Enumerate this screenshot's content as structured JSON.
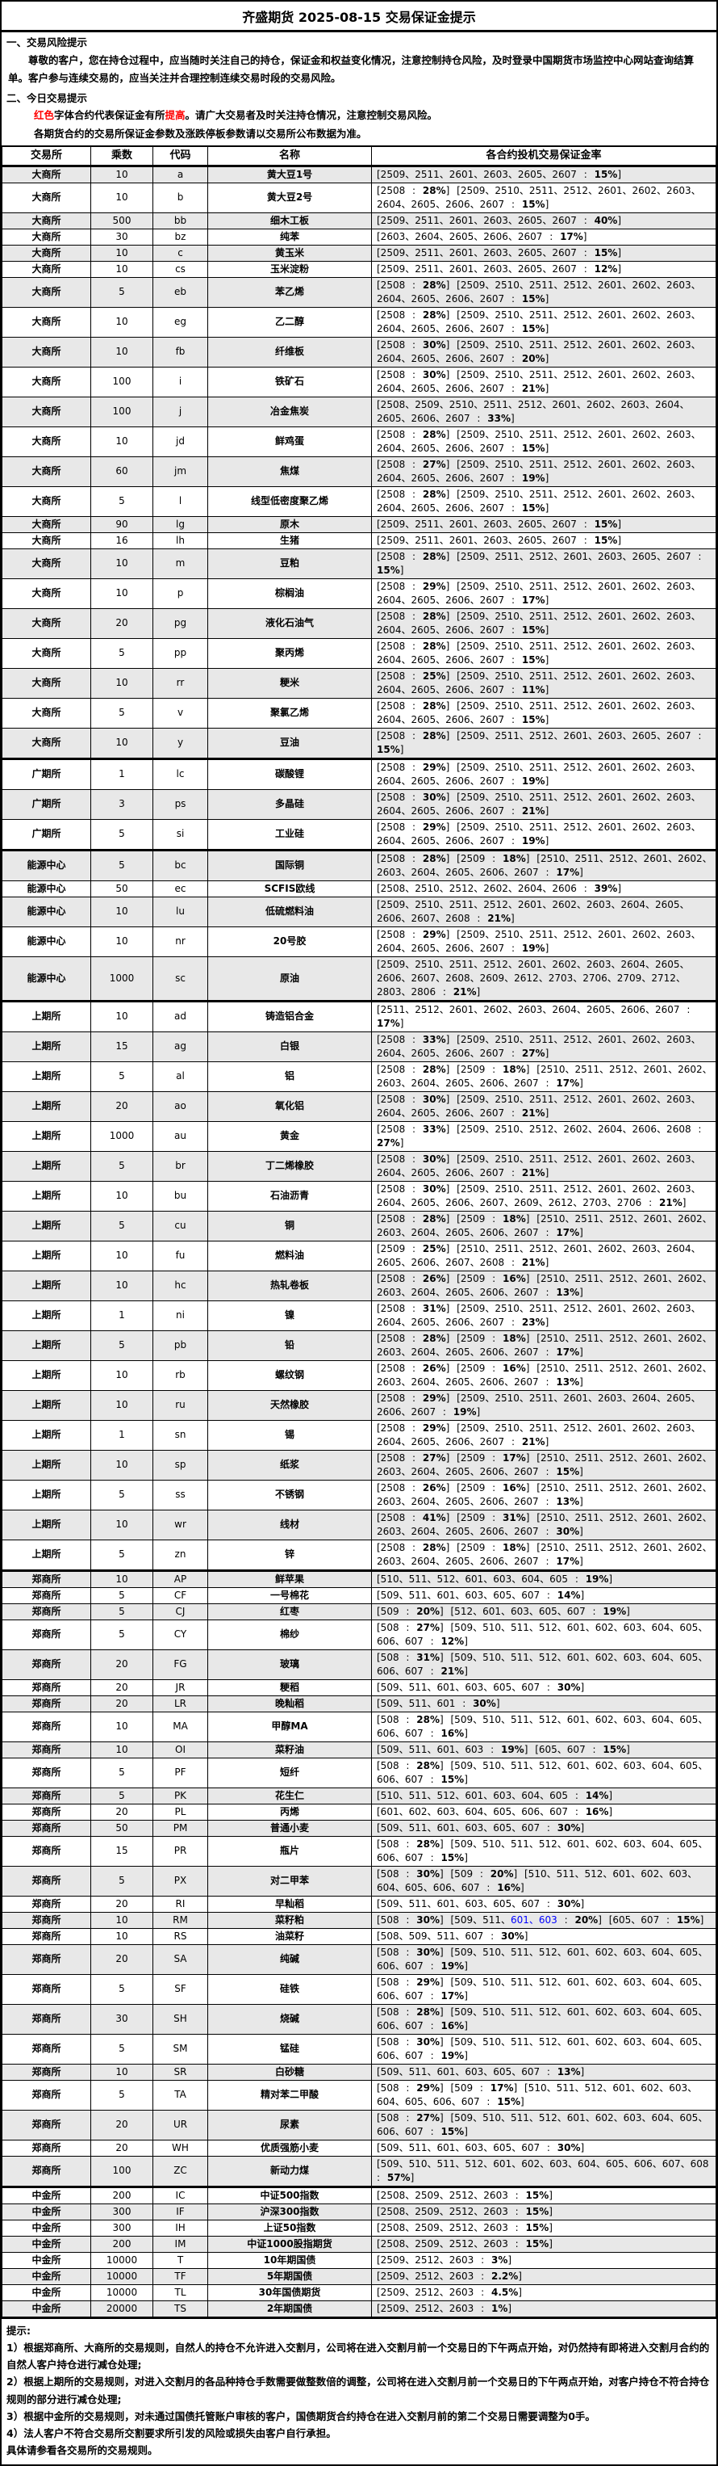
{
  "title": "齐盛期货 2025-08-15 交易保证金提示",
  "risk": {
    "heading": "一、交易风险提示",
    "body": "尊敬的客户，您在持仓过程中，应当随时关注自己的持仓，保证金和权益变化情况，注意控制持仓风险，及时登录中国期货市场监控中心网站查询结算单。客户参与连续交易的，应当关注并合理控制连续交易时段的交易风险。"
  },
  "today": {
    "heading": "二、今日交易提示",
    "line1": [
      {
        "text": "红色",
        "red": true
      },
      {
        "text": "字体合约代表保证金有所",
        "red": false
      },
      {
        "text": "提高",
        "red": true
      },
      {
        "text": "。请广大交易者及时关注持仓情况，注意控制交易风险。",
        "red": false
      }
    ],
    "line2": "各期货合约的交易所保证金参数及涨跌停板参数请以交易所公布数据为准。"
  },
  "colors": {
    "highlight_red": "#ff0000",
    "contract_blue": "#0000ff",
    "row_alt_gray": "#e8e8e8"
  },
  "table": {
    "headers": [
      "交易所",
      "乘数",
      "代码",
      "名称",
      "各合约投机交易保证金率"
    ],
    "rows": [
      {
        "ex": "大商所",
        "mult": "10",
        "code": "a",
        "name": "黄大豆1号",
        "margin": "[2509、2511、2601、2603、2605、2607:15%]"
      },
      {
        "ex": "大商所",
        "mult": "10",
        "code": "b",
        "name": "黄大豆2号",
        "margin": "[2508:28%] [2509、2510、2511、2512、2601、2602、2603、2604、2605、2606、2607:15%]"
      },
      {
        "ex": "大商所",
        "mult": "500",
        "code": "bb",
        "name": "细木工板",
        "margin": "[2509、2511、2601、2603、2605、2607:40%]"
      },
      {
        "ex": "大商所",
        "mult": "30",
        "code": "bz",
        "name": "纯苯",
        "margin": "[2603、2604、2605、2606、2607:17%]"
      },
      {
        "ex": "大商所",
        "mult": "10",
        "code": "c",
        "name": "黄玉米",
        "margin": "[2509、2511、2601、2603、2605、2607:15%]"
      },
      {
        "ex": "大商所",
        "mult": "10",
        "code": "cs",
        "name": "玉米淀粉",
        "margin": "[2509、2511、2601、2603、2605、2607:12%]"
      },
      {
        "ex": "大商所",
        "mult": "5",
        "code": "eb",
        "name": "苯乙烯",
        "margin": "[2508:28%] [2509、2510、2511、2512、2601、2602、2603、2604、2605、2606、2607:15%]"
      },
      {
        "ex": "大商所",
        "mult": "10",
        "code": "eg",
        "name": "乙二醇",
        "margin": "[2508:28%] [2509、2510、2511、2512、2601、2602、2603、2604、2605、2606、2607:15%]"
      },
      {
        "ex": "大商所",
        "mult": "10",
        "code": "fb",
        "name": "纤维板",
        "margin": "[2508:30%] [2509、2510、2511、2512、2601、2602、2603、2604、2605、2606、2607:20%]"
      },
      {
        "ex": "大商所",
        "mult": "100",
        "code": "i",
        "name": "铁矿石",
        "margin": "[2508:30%] [2509、2510、2511、2512、2601、2602、2603、2604、2605、2606、2607:21%]"
      },
      {
        "ex": "大商所",
        "mult": "100",
        "code": "j",
        "name": "冶金焦炭",
        "margin": "[2508、2509、2510、2511、2512、2601、2602、2603、2604、2605、2606、2607:33%]"
      },
      {
        "ex": "大商所",
        "mult": "10",
        "code": "jd",
        "name": "鲜鸡蛋",
        "margin": "[2508:28%] [2509、2510、2511、2512、2601、2602、2603、2604、2605、2606、2607:15%]"
      },
      {
        "ex": "大商所",
        "mult": "60",
        "code": "jm",
        "name": "焦煤",
        "margin": "[2508:27%] [2509、2510、2511、2512、2601、2602、2603、2604、2605、2606、2607:19%]"
      },
      {
        "ex": "大商所",
        "mult": "5",
        "code": "l",
        "name": "线型低密度聚乙烯",
        "margin": "[2508:28%] [2509、2510、2511、2512、2601、2602、2603、2604、2605、2606、2607:15%]"
      },
      {
        "ex": "大商所",
        "mult": "90",
        "code": "lg",
        "name": "原木",
        "margin": "[2509、2511、2601、2603、2605、2607:15%]"
      },
      {
        "ex": "大商所",
        "mult": "16",
        "code": "lh",
        "name": "生猪",
        "margin": "[2509、2511、2601、2603、2605、2607:15%]"
      },
      {
        "ex": "大商所",
        "mult": "10",
        "code": "m",
        "name": "豆粕",
        "margin": "[2508:28%] [2509、2511、2512、2601、2603、2605、2607:15%]"
      },
      {
        "ex": "大商所",
        "mult": "10",
        "code": "p",
        "name": "棕榈油",
        "margin": "[2508:29%] [2509、2510、2511、2512、2601、2602、2603、2604、2605、2606、2607:17%]"
      },
      {
        "ex": "大商所",
        "mult": "20",
        "code": "pg",
        "name": "液化石油气",
        "margin": "[2508:28%] [2509、2510、2511、2512、2601、2602、2603、2604、2605、2606、2607:15%]"
      },
      {
        "ex": "大商所",
        "mult": "5",
        "code": "pp",
        "name": "聚丙烯",
        "margin": "[2508:28%] [2509、2510、2511、2512、2601、2602、2603、2604、2605、2606、2607:15%]"
      },
      {
        "ex": "大商所",
        "mult": "10",
        "code": "rr",
        "name": "粳米",
        "margin": "[2508:25%] [2509、2510、2511、2512、2601、2602、2603、2604、2605、2606、2607:11%]"
      },
      {
        "ex": "大商所",
        "mult": "5",
        "code": "v",
        "name": "聚氯乙烯",
        "margin": "[2508:28%] [2509、2510、2511、2512、2601、2602、2603、2604、2605、2606、2607:15%]"
      },
      {
        "ex": "大商所",
        "mult": "10",
        "code": "y",
        "name": "豆油",
        "margin": "[2508:28%] [2509、2511、2512、2601、2603、2605、2607:15%]"
      },
      {
        "ex": "广期所",
        "mult": "1",
        "code": "lc",
        "name": "碳酸锂",
        "margin": "[2508:29%] [2509、2510、2511、2512、2601、2602、2603、2604、2605、2606、2607:19%]",
        "group_start": true
      },
      {
        "ex": "广期所",
        "mult": "3",
        "code": "ps",
        "name": "多晶硅",
        "margin": "[2508:30%] [2509、2510、2511、2512、2601、2602、2603、2604、2605、2606、2607:21%]"
      },
      {
        "ex": "广期所",
        "mult": "5",
        "code": "si",
        "name": "工业硅",
        "margin": "[2508:29%] [2509、2510、2511、2512、2601、2602、2603、2604、2605、2606、2607:19%]"
      },
      {
        "ex": "能源中心",
        "mult": "5",
        "code": "bc",
        "name": "国际铜",
        "margin": "[2508:28%] [2509:18%] [2510、2511、2512、2601、2602、2603、2604、2605、2606、2607:17%]",
        "group_start": true
      },
      {
        "ex": "能源中心",
        "mult": "50",
        "code": "ec",
        "name": "SCFIS欧线",
        "margin": "[2508、2510、2512、2602、2604、2606:39%]"
      },
      {
        "ex": "能源中心",
        "mult": "10",
        "code": "lu",
        "name": "低硫燃料油",
        "margin": "[2509、2510、2511、2512、2601、2602、2603、2604、2605、2606、2607、2608:21%]"
      },
      {
        "ex": "能源中心",
        "mult": "10",
        "code": "nr",
        "name": "20号胶",
        "margin": "[2508:29%] [2509、2510、2511、2512、2601、2602、2603、2604、2605、2606、2607:19%]"
      },
      {
        "ex": "能源中心",
        "mult": "1000",
        "code": "sc",
        "name": "原油",
        "margin": "[2509、2510、2511、2512、2601、2602、2603、2604、2605、2606、2607、2608、2609、2612、2703、2706、2709、2712、2803、2806:21%]"
      },
      {
        "ex": "上期所",
        "mult": "10",
        "code": "ad",
        "name": "铸造铝合金",
        "margin": "[2511、2512、2601、2602、2603、2604、2605、2606、2607:17%]",
        "group_start": true
      },
      {
        "ex": "上期所",
        "mult": "15",
        "code": "ag",
        "name": "白银",
        "margin": "[2508:33%] [2509、2510、2511、2512、2601、2602、2603、2604、2605、2606、2607:27%]"
      },
      {
        "ex": "上期所",
        "mult": "5",
        "code": "al",
        "name": "铝",
        "margin": "[2508:28%] [2509:18%] [2510、2511、2512、2601、2602、2603、2604、2605、2606、2607:17%]"
      },
      {
        "ex": "上期所",
        "mult": "20",
        "code": "ao",
        "name": "氧化铝",
        "margin": "[2508:30%] [2509、2510、2511、2512、2601、2602、2603、2604、2605、2606、2607:21%]"
      },
      {
        "ex": "上期所",
        "mult": "1000",
        "code": "au",
        "name": "黄金",
        "margin": "[2508:33%] [2509、2510、2512、2602、2604、2606、2608:27%]"
      },
      {
        "ex": "上期所",
        "mult": "5",
        "code": "br",
        "name": "丁二烯橡胶",
        "margin": "[2508:30%] [2509、2510、2511、2512、2601、2602、2603、2604、2605、2606、2607:21%]"
      },
      {
        "ex": "上期所",
        "mult": "10",
        "code": "bu",
        "name": "石油沥青",
        "margin": "[2508:30%] [2509、2510、2511、2512、2601、2602、2603、2604、2605、2606、2607、2609、2612、2703、2706:21%]"
      },
      {
        "ex": "上期所",
        "mult": "5",
        "code": "cu",
        "name": "铜",
        "margin": "[2508:28%] [2509:18%] [2510、2511、2512、2601、2602、2603、2604、2605、2606、2607:17%]"
      },
      {
        "ex": "上期所",
        "mult": "10",
        "code": "fu",
        "name": "燃料油",
        "margin": "[2509:25%] [2510、2511、2512、2601、2602、2603、2604、2605、2606、2607、2608:21%]"
      },
      {
        "ex": "上期所",
        "mult": "10",
        "code": "hc",
        "name": "热轧卷板",
        "margin": "[2508:26%] [2509:16%] [2510、2511、2512、2601、2602、2603、2604、2605、2606、2607:13%]"
      },
      {
        "ex": "上期所",
        "mult": "1",
        "code": "ni",
        "name": "镍",
        "margin": "[2508:31%] [2509、2510、2511、2512、2601、2602、2603、2604、2605、2606、2607:23%]"
      },
      {
        "ex": "上期所",
        "mult": "5",
        "code": "pb",
        "name": "铅",
        "margin": "[2508:28%] [2509:18%] [2510、2511、2512、2601、2602、2603、2604、2605、2606、2607:17%]"
      },
      {
        "ex": "上期所",
        "mult": "10",
        "code": "rb",
        "name": "螺纹钢",
        "margin": "[2508:26%] [2509:16%] [2510、2511、2512、2601、2602、2603、2604、2605、2606、2607:13%]"
      },
      {
        "ex": "上期所",
        "mult": "10",
        "code": "ru",
        "name": "天然橡胶",
        "margin": "[2508:29%] [2509、2510、2511、2601、2603、2604、2605、2606、2607:19%]"
      },
      {
        "ex": "上期所",
        "mult": "1",
        "code": "sn",
        "name": "锡",
        "margin": "[2508:29%] [2509、2510、2511、2512、2601、2602、2603、2604、2605、2606、2607:21%]"
      },
      {
        "ex": "上期所",
        "mult": "10",
        "code": "sp",
        "name": "纸浆",
        "margin": "[2508:27%] [2509:17%] [2510、2511、2512、2601、2602、2603、2604、2605、2606、2607:15%]"
      },
      {
        "ex": "上期所",
        "mult": "5",
        "code": "ss",
        "name": "不锈钢",
        "margin": "[2508:26%] [2509:16%] [2510、2511、2512、2601、2602、2603、2604、2605、2606、2607:13%]"
      },
      {
        "ex": "上期所",
        "mult": "10",
        "code": "wr",
        "name": "线材",
        "margin": "[2508:41%] [2509:31%] [2510、2511、2512、2601、2602、2603、2604、2605、2606、2607:30%]"
      },
      {
        "ex": "上期所",
        "mult": "5",
        "code": "zn",
        "name": "锌",
        "margin": "[2508:28%] [2509:18%] [2510、2511、2512、2601、2602、2603、2604、2605、2606、2607:17%]"
      },
      {
        "ex": "郑商所",
        "mult": "10",
        "code": "AP",
        "name": "鲜苹果",
        "margin": "[510、511、512、601、603、604、605:19%]",
        "group_start": true
      },
      {
        "ex": "郑商所",
        "mult": "5",
        "code": "CF",
        "name": "一号棉花",
        "margin": "[509、511、601、603、605、607:14%]"
      },
      {
        "ex": "郑商所",
        "mult": "5",
        "code": "CJ",
        "name": "红枣",
        "margin": "[509:20%] [512、601、603、605、607:19%]"
      },
      {
        "ex": "郑商所",
        "mult": "5",
        "code": "CY",
        "name": "棉纱",
        "margin": "[508:27%] [509、510、511、512、601、602、603、604、605、606、607:12%]"
      },
      {
        "ex": "郑商所",
        "mult": "20",
        "code": "FG",
        "name": "玻璃",
        "margin": "[508:31%] [509、510、511、512、601、602、603、604、605、606、607:21%]"
      },
      {
        "ex": "郑商所",
        "mult": "20",
        "code": "JR",
        "name": "粳稻",
        "margin": "[509、511、601、603、605、607:30%]"
      },
      {
        "ex": "郑商所",
        "mult": "20",
        "code": "LR",
        "name": "晚籼稻",
        "margin": "[509、511、601:30%]"
      },
      {
        "ex": "郑商所",
        "mult": "10",
        "code": "MA",
        "name": "甲醇MA",
        "margin": "[508:28%] [509、510、511、512、601、602、603、604、605、606、607:16%]"
      },
      {
        "ex": "郑商所",
        "mult": "10",
        "code": "OI",
        "name": "菜籽油",
        "margin": "[509、511、601、603:19%] [605、607:15%]"
      },
      {
        "ex": "郑商所",
        "mult": "5",
        "code": "PF",
        "name": "短纤",
        "margin": "[508:28%] [509、510、511、512、601、602、603、604、605、606、607:15%]"
      },
      {
        "ex": "郑商所",
        "mult": "5",
        "code": "PK",
        "name": "花生仁",
        "margin": "[510、511、512、601、603、604、605:14%]"
      },
      {
        "ex": "郑商所",
        "mult": "20",
        "code": "PL",
        "name": "丙烯",
        "margin": "[601、602、603、604、605、606、607:16%]"
      },
      {
        "ex": "郑商所",
        "mult": "50",
        "code": "PM",
        "name": "普通小麦",
        "margin": "[509、511、601、603、605、607:30%]"
      },
      {
        "ex": "郑商所",
        "mult": "15",
        "code": "PR",
        "name": "瓶片",
        "margin": "[508:28%] [509、510、511、512、601、602、603、604、605、606、607:15%]"
      },
      {
        "ex": "郑商所",
        "mult": "5",
        "code": "PX",
        "name": "对二甲苯",
        "margin": "[508:30%] [509:20%] [510、511、512、601、602、603、604、605、606、607:16%]"
      },
      {
        "ex": "郑商所",
        "mult": "20",
        "code": "RI",
        "name": "早籼稻",
        "margin": "[509、511、601、603、605、607:30%]"
      },
      {
        "ex": "郑商所",
        "mult": "10",
        "code": "RM",
        "name": "菜籽粕",
        "margin": "[508:30%] [509、511、601、603:20%] [605、607:15%]",
        "blue_text": "601、603"
      },
      {
        "ex": "郑商所",
        "mult": "10",
        "code": "RS",
        "name": "油菜籽",
        "margin": "[508、509、511、607:30%]"
      },
      {
        "ex": "郑商所",
        "mult": "20",
        "code": "SA",
        "name": "纯碱",
        "margin": "[508:30%] [509、510、511、512、601、602、603、604、605、606、607:19%]"
      },
      {
        "ex": "郑商所",
        "mult": "5",
        "code": "SF",
        "name": "硅铁",
        "margin": "[508:29%] [509、510、511、512、601、602、603、604、605、606、607:17%]"
      },
      {
        "ex": "郑商所",
        "mult": "30",
        "code": "SH",
        "name": "烧碱",
        "margin": "[508:28%] [509、510、511、512、601、602、603、604、605、606、607:16%]"
      },
      {
        "ex": "郑商所",
        "mult": "5",
        "code": "SM",
        "name": "锰硅",
        "margin": "[508:30%] [509、510、511、512、601、602、603、604、605、606、607:19%]"
      },
      {
        "ex": "郑商所",
        "mult": "10",
        "code": "SR",
        "name": "白砂糖",
        "margin": "[509、511、601、603、605、607:13%]"
      },
      {
        "ex": "郑商所",
        "mult": "5",
        "code": "TA",
        "name": "精对苯二甲酸",
        "margin": "[508:29%] [509:17%] [510、511、512、601、602、603、604、605、606、607:15%]"
      },
      {
        "ex": "郑商所",
        "mult": "20",
        "code": "UR",
        "name": "尿素",
        "margin": "[508:27%] [509、510、511、512、601、602、603、604、605、606、607:15%]"
      },
      {
        "ex": "郑商所",
        "mult": "20",
        "code": "WH",
        "name": "优质强筋小麦",
        "margin": "[509、511、601、603、605、607:30%]"
      },
      {
        "ex": "郑商所",
        "mult": "100",
        "code": "ZC",
        "name": "新动力煤",
        "margin": "[509、510、511、512、601、602、603、604、605、606、607、608:57%]"
      },
      {
        "ex": "中金所",
        "mult": "200",
        "code": "IC",
        "name": "中证500指数",
        "margin": "[2508、2509、2512、2603:15%]",
        "group_start": true
      },
      {
        "ex": "中金所",
        "mult": "300",
        "code": "IF",
        "name": "沪深300指数",
        "margin": "[2508、2509、2512、2603:15%]"
      },
      {
        "ex": "中金所",
        "mult": "300",
        "code": "IH",
        "name": "上证50指数",
        "margin": "[2508、2509、2512、2603:15%]"
      },
      {
        "ex": "中金所",
        "mult": "200",
        "code": "IM",
        "name": "中证1000股指期货",
        "margin": "[2508、2509、2512、2603:15%]"
      },
      {
        "ex": "中金所",
        "mult": "10000",
        "code": "T",
        "name": "10年期国债",
        "margin": "[2509、2512、2603:3%]"
      },
      {
        "ex": "中金所",
        "mult": "10000",
        "code": "TF",
        "name": "5年期国债",
        "margin": "[2509、2512、2603:2.2%]"
      },
      {
        "ex": "中金所",
        "mult": "10000",
        "code": "TL",
        "name": "30年国债期货",
        "margin": "[2509、2512、2603:4.5%]"
      },
      {
        "ex": "中金所",
        "mult": "20000",
        "code": "TS",
        "name": "2年期国债",
        "margin": "[2509、2512、2603:1%]"
      }
    ]
  },
  "notes": {
    "heading": "提示:",
    "items": [
      "1）根据郑商所、大商所的交易规则，自然人的持仓不允许进入交割月，公司将在进入交割月前一个交易日的下午两点开始，对仍然持有即将进入交割月合约的自然人客户持仓进行减仓处理;",
      "2）根据上期所的交易规则，对进入交割月的各品种持仓手数需要做整数倍的调整，公司将在进入交割月前一个交易日的下午两点开始，对客户持仓不符合持仓规则的部分进行减仓处理;",
      "3）根据中金所的交易规则，对未通过国债托管账户审核的客户，国债期货合约持仓在进入交割月前的第二个交易日需要调整为0手。",
      "4）法人客户不符合交易所交割要求所引发的风险或损失由客户自行承担。",
      "具体请参看各交易所的交易规则。"
    ]
  }
}
